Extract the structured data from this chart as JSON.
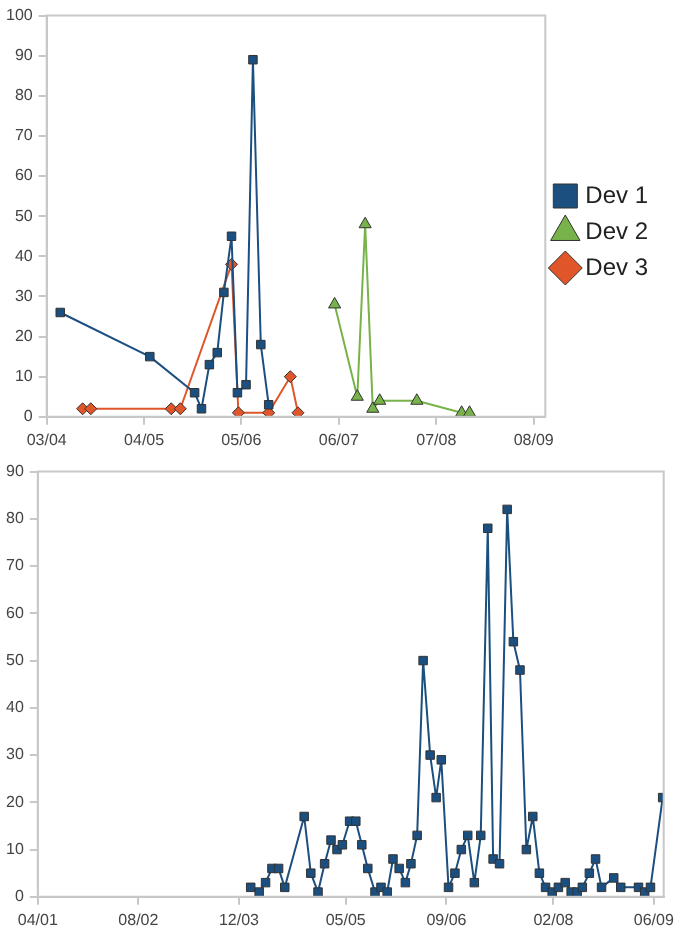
{
  "chart_data": [
    {
      "type": "line",
      "xlim": [
        "2004-03",
        "2009-09-17"
      ],
      "xticks": [
        {
          "value": "2004-03",
          "label": "03/04"
        },
        {
          "value": "2005-04",
          "label": "04/05"
        },
        {
          "value": "2006-05",
          "label": "05/06"
        },
        {
          "value": "2007-06",
          "label": "06/07"
        },
        {
          "value": "2008-07",
          "label": "07/08"
        },
        {
          "value": "2009-08",
          "label": "08/09"
        }
      ],
      "ylim": [
        0,
        100
      ],
      "yticks": [
        0,
        10,
        20,
        30,
        40,
        50,
        60,
        70,
        80,
        90,
        100
      ],
      "grid": false,
      "legend": "right",
      "line_style": "solid",
      "series": [
        {
          "name": "Dev 1",
          "color": "#1b4f7f",
          "marker": "square",
          "x": [
            "2004-04-25",
            "2005-04-24",
            "2005-10-23",
            "2005-11-20",
            "2005-12-22",
            "2006-01-23",
            "2006-02-19",
            "2006-03-22",
            "2006-04-15",
            "2006-05-20",
            "2006-06-17",
            "2006-07-19",
            "2006-08-20"
          ],
          "values": [
            26,
            15,
            6,
            2,
            13,
            16,
            31,
            45,
            6,
            8,
            89,
            18,
            3
          ]
        },
        {
          "name": "Dev 2",
          "color": "#77b24a",
          "marker": "triangle",
          "x": [
            "2007-05-15",
            "2007-08-15",
            "2007-09-16",
            "2007-10-17",
            "2007-11-14",
            "2008-04-13",
            "2008-10-12",
            "2008-11-13"
          ],
          "values": [
            28,
            5,
            48,
            2,
            4,
            4,
            1,
            1
          ]
        },
        {
          "name": "Dev 3",
          "color": "#e0562a",
          "marker": "diamond",
          "x": [
            "2004-07-25",
            "2004-08-27",
            "2005-07-20",
            "2005-08-26",
            "2006-03-22",
            "2006-04-19",
            "2006-08-20",
            "2006-11-16",
            "2006-12-17"
          ],
          "values": [
            2,
            2,
            2,
            2,
            38,
            1,
            1,
            10,
            1
          ]
        }
      ]
    },
    {
      "type": "line",
      "xlim": [
        "2001-04",
        "2009-07-19"
      ],
      "xticks": [
        {
          "value": "2001-04",
          "label": "04/01"
        },
        {
          "value": "2002-08",
          "label": "08/02"
        },
        {
          "value": "2003-12",
          "label": "12/03"
        },
        {
          "value": "2005-05",
          "label": "05/05"
        },
        {
          "value": "2006-09",
          "label": "09/06"
        },
        {
          "value": "2008-02",
          "label": "02/08"
        },
        {
          "value": "2009-06",
          "label": "06/09"
        }
      ],
      "ylim": [
        0,
        90
      ],
      "yticks": [
        0,
        10,
        20,
        30,
        40,
        50,
        60,
        70,
        80,
        90
      ],
      "grid": false,
      "line_style": "solid",
      "series": [
        {
          "color": "#1b4f7f",
          "marker": "square",
          "x": [
            "2004-01-27",
            "2004-03-08",
            "2004-04-08",
            "2004-05-09",
            "2004-06-10",
            "2004-07-10",
            "2004-10-12",
            "2004-11-13",
            "2004-12-18",
            "2005-01-19",
            "2005-02-19",
            "2005-03-20",
            "2005-04-15",
            "2005-05-20",
            "2005-06-19",
            "2005-07-18",
            "2005-08-16",
            "2005-09-20",
            "2005-10-19",
            "2005-11-18",
            "2005-12-16",
            "2006-01-15",
            "2006-02-14",
            "2006-03-13",
            "2006-04-12",
            "2006-05-11",
            "2006-06-14",
            "2006-07-13",
            "2006-08-07",
            "2006-09-11",
            "2006-10-12",
            "2006-11-12",
            "2006-12-13",
            "2007-01-14",
            "2007-02-14",
            "2007-03-20",
            "2007-04-15",
            "2007-05-16",
            "2007-06-22",
            "2007-07-22",
            "2007-08-23",
            "2007-09-23",
            "2007-10-24",
            "2007-11-25",
            "2007-12-25",
            "2008-01-26",
            "2008-02-25",
            "2008-03-29",
            "2008-04-27",
            "2008-05-26",
            "2008-06-20",
            "2008-07-24",
            "2008-08-23",
            "2008-09-21",
            "2008-11-19",
            "2008-12-23",
            "2009-03-19",
            "2009-04-18",
            "2009-05-16",
            "2009-07-14"
          ],
          "values": [
            2,
            1,
            3,
            6,
            6,
            2,
            17,
            5,
            1,
            7,
            12,
            10,
            11,
            16,
            16,
            11,
            6,
            1,
            2,
            1,
            8,
            6,
            3,
            7,
            13,
            50,
            30,
            21,
            29,
            2,
            5,
            10,
            13,
            3,
            13,
            78,
            8,
            7,
            82,
            54,
            48,
            10,
            17,
            5,
            2,
            1,
            2,
            3,
            1,
            1,
            2,
            5,
            8,
            2,
            4,
            2,
            2,
            1,
            2,
            21
          ]
        }
      ]
    }
  ]
}
